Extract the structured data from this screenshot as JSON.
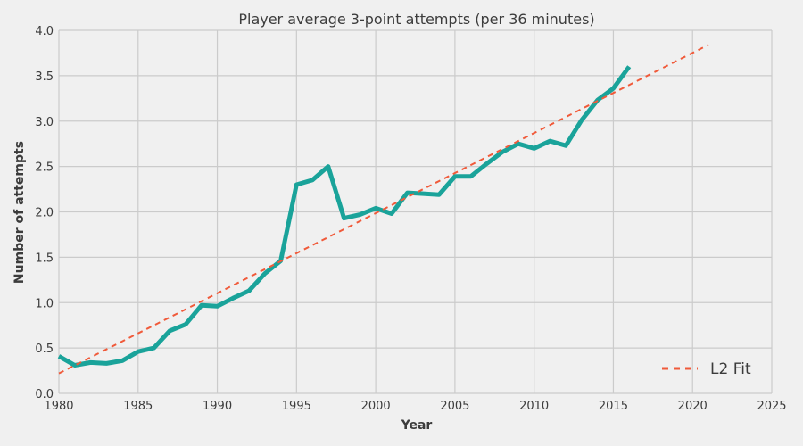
{
  "chart_data": {
    "type": "line",
    "title": "Player average 3-point attempts (per 36 minutes)",
    "xlabel": "Year",
    "ylabel": "Number of attempts",
    "xlim": [
      1980,
      2025
    ],
    "ylim": [
      0,
      4
    ],
    "x_ticks": [
      1980,
      1985,
      1990,
      1995,
      2000,
      2005,
      2010,
      2015,
      2020,
      2025
    ],
    "y_ticks": [
      "0.0",
      "0.5",
      "1.0",
      "1.5",
      "2.0",
      "2.5",
      "3.0",
      "3.5",
      "4.0"
    ],
    "grid": true,
    "legend_placement": "bottom-right",
    "series": [
      {
        "color": "#1aa39a",
        "style": "solid",
        "x": [
          1980,
          1981,
          1982,
          1983,
          1984,
          1985,
          1986,
          1987,
          1988,
          1989,
          1990,
          1991,
          1992,
          1993,
          1994,
          1995,
          1996,
          1997,
          1998,
          1999,
          2000,
          2001,
          2002,
          2003,
          2004,
          2005,
          2006,
          2007,
          2008,
          2009,
          2010,
          2011,
          2012,
          2013,
          2014,
          2015,
          2016
        ],
        "y": [
          0.41,
          0.31,
          0.34,
          0.33,
          0.36,
          0.46,
          0.5,
          0.69,
          0.76,
          0.97,
          0.96,
          1.05,
          1.13,
          1.32,
          1.46,
          2.3,
          2.35,
          2.5,
          1.93,
          1.97,
          2.04,
          1.98,
          2.21,
          2.2,
          2.19,
          2.39,
          2.39,
          2.53,
          2.66,
          2.75,
          2.7,
          2.78,
          2.73,
          3.01,
          3.23,
          3.36,
          3.6
        ]
      },
      {
        "name": "L2 Fit",
        "color": "#f05a3a",
        "style": "dashed",
        "x": [
          1980,
          2021
        ],
        "y": [
          0.22,
          3.84
        ]
      }
    ]
  }
}
